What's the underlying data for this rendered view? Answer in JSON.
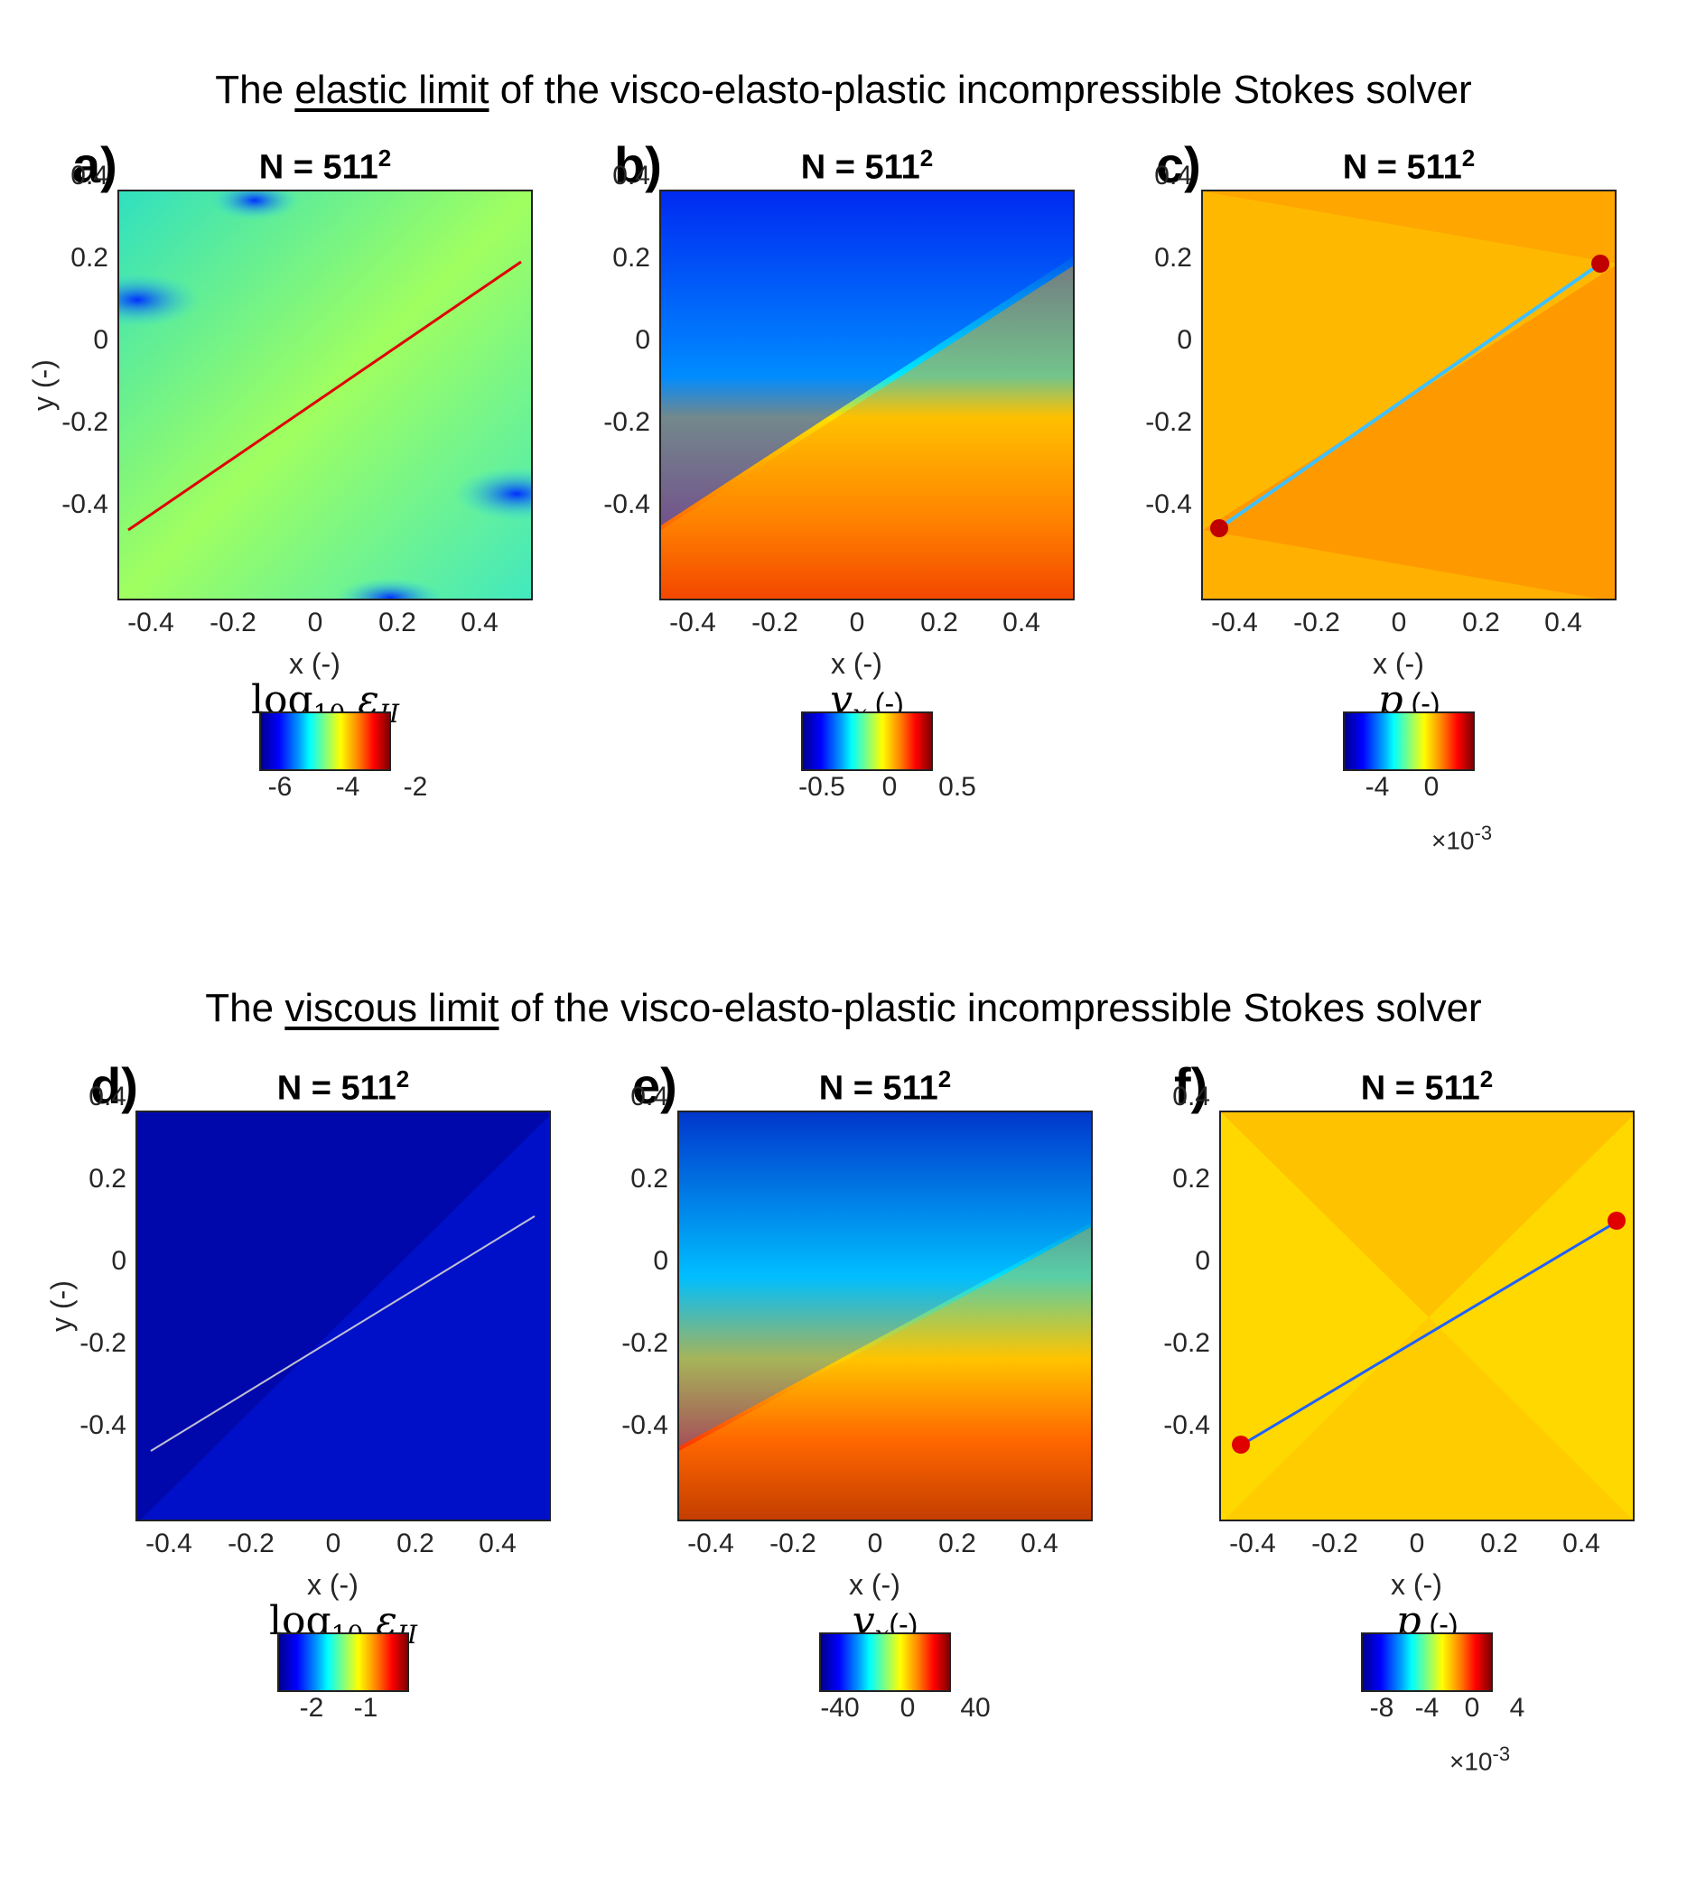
{
  "titles": {
    "top": {
      "pre": "The ",
      "ul": "elastic limit",
      "post": " of the visco-elasto-plastic incompressible Stokes solver"
    },
    "bottom": {
      "pre": "The ",
      "ul": "viscous limit",
      "post": " of the visco-elasto-plastic incompressible Stokes solver"
    }
  },
  "axes": {
    "xticks": [
      "-0.4",
      "-0.2",
      "0",
      "0.2",
      "0.4"
    ],
    "yticks": [
      "0.4",
      "0.2",
      "0",
      "-0.2",
      "-0.4"
    ],
    "xlabel": "x (-)",
    "ylabel": "y (-)"
  },
  "panels": [
    {
      "label": "a)",
      "n": "N = 511",
      "exp": "2",
      "cb_math": "log",
      "cb_sub": "10",
      "cb_sym": " ε",
      "cb_sub2": "II",
      "cb_unit": "",
      "cb_ticks": [
        "-6",
        "-4",
        "-2"
      ],
      "cb_exp": ""
    },
    {
      "label": "b)",
      "n": "N = 511",
      "exp": "2",
      "cb_math": "",
      "cb_sub": "",
      "cb_sym": "v",
      "cb_sub2": "x",
      "cb_unit": " (-)",
      "cb_ticks": [
        "-0.5",
        "0",
        "0.5"
      ],
      "cb_exp": ""
    },
    {
      "label": "c)",
      "n": "N = 511",
      "exp": "2",
      "cb_math": "",
      "cb_sub": "",
      "cb_sym": "p",
      "cb_sub2": "",
      "cb_unit": " (-)",
      "cb_ticks": [
        "-4",
        "0"
      ],
      "cb_exp": "×10-3"
    },
    {
      "label": "d)",
      "n": "N = 511",
      "exp": "2",
      "cb_math": "log",
      "cb_sub": "10",
      "cb_sym": " ε",
      "cb_sub2": "II",
      "cb_unit": "",
      "cb_ticks": [
        "-2",
        "-1"
      ],
      "cb_exp": ""
    },
    {
      "label": "e)",
      "n": "N = 511",
      "exp": "2",
      "cb_math": "",
      "cb_sub": "",
      "cb_sym": "v",
      "cb_sub2": "x",
      "cb_unit": "(-)",
      "cb_ticks": [
        "-40",
        "0",
        "40"
      ],
      "cb_exp": ""
    },
    {
      "label": "f)",
      "n": "N = 511",
      "exp": "2",
      "cb_math": "",
      "cb_sub": "",
      "cb_sym": "p",
      "cb_sub2": "",
      "cb_unit": " (-)",
      "cb_ticks": [
        "-8",
        "-4",
        "0",
        "4"
      ],
      "cb_exp": "×10-3"
    }
  ],
  "colormap": "jet"
}
